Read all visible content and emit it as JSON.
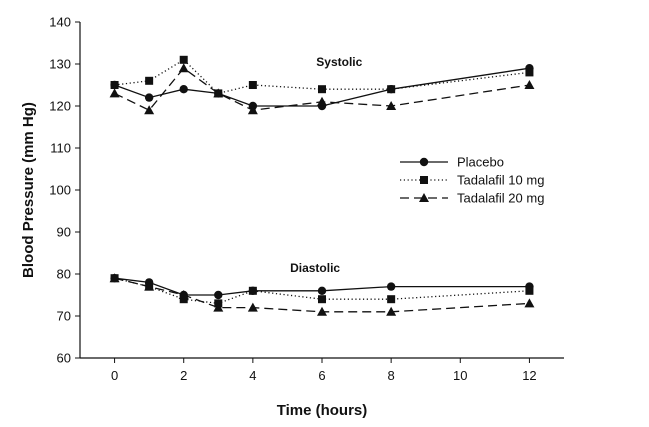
{
  "chart_data": {
    "type": "line",
    "title": "",
    "xlabel": "Time (hours)",
    "ylabel": "Blood Pressure (mm Hg)",
    "xlim": [
      -1,
      13
    ],
    "ylim": [
      60,
      140
    ],
    "x_ticks": [
      0,
      2,
      4,
      6,
      8,
      10,
      12
    ],
    "y_ticks": [
      60,
      70,
      80,
      90,
      100,
      110,
      120,
      130,
      140
    ],
    "grid": false,
    "legend_position": "right-middle",
    "annotations": [
      {
        "text": "Systolic",
        "x": 6.5,
        "y": 129.5
      },
      {
        "text": "Diastolic",
        "x": 5.8,
        "y": 80.5
      }
    ],
    "series": [
      {
        "name": "Placebo",
        "group": "Systolic",
        "line": "solid",
        "marker": "circle",
        "color": "#111111",
        "x": [
          0,
          1,
          2,
          3,
          4,
          6,
          8,
          12
        ],
        "values": [
          125,
          122,
          124,
          123,
          120,
          120,
          124,
          129
        ]
      },
      {
        "name": "Tadalafil 10 mg",
        "group": "Systolic",
        "line": "dotted",
        "marker": "square",
        "color": "#111111",
        "x": [
          0,
          1,
          2,
          3,
          4,
          6,
          8,
          12
        ],
        "values": [
          125,
          126,
          131,
          123,
          125,
          124,
          124,
          128
        ]
      },
      {
        "name": "Tadalafil 20 mg",
        "group": "Systolic",
        "line": "dashed",
        "marker": "triangle",
        "color": "#111111",
        "x": [
          0,
          1,
          2,
          3,
          4,
          6,
          8,
          12
        ],
        "values": [
          123,
          119,
          129,
          123,
          119,
          121,
          120,
          125
        ]
      },
      {
        "name": "Placebo",
        "group": "Diastolic",
        "line": "solid",
        "marker": "circle",
        "color": "#111111",
        "x": [
          0,
          1,
          2,
          3,
          4,
          6,
          8,
          12
        ],
        "values": [
          79,
          78,
          75,
          75,
          76,
          76,
          77,
          77
        ]
      },
      {
        "name": "Tadalafil 10 mg",
        "group": "Diastolic",
        "line": "dotted",
        "marker": "square",
        "color": "#111111",
        "x": [
          0,
          1,
          2,
          3,
          4,
          6,
          8,
          12
        ],
        "values": [
          79,
          77,
          74,
          73,
          76,
          74,
          74,
          76
        ]
      },
      {
        "name": "Tadalafil 20 mg",
        "group": "Diastolic",
        "line": "dashed",
        "marker": "triangle",
        "color": "#111111",
        "x": [
          0,
          1,
          2,
          3,
          4,
          6,
          8,
          12
        ],
        "values": [
          79,
          77,
          75,
          72,
          72,
          71,
          71,
          73
        ]
      }
    ],
    "legend": [
      {
        "label": "Placebo",
        "line": "solid",
        "marker": "circle"
      },
      {
        "label": "Tadalafil 10 mg",
        "line": "dotted",
        "marker": "square"
      },
      {
        "label": "Tadalafil 20 mg",
        "line": "dashed",
        "marker": "triangle"
      }
    ]
  }
}
